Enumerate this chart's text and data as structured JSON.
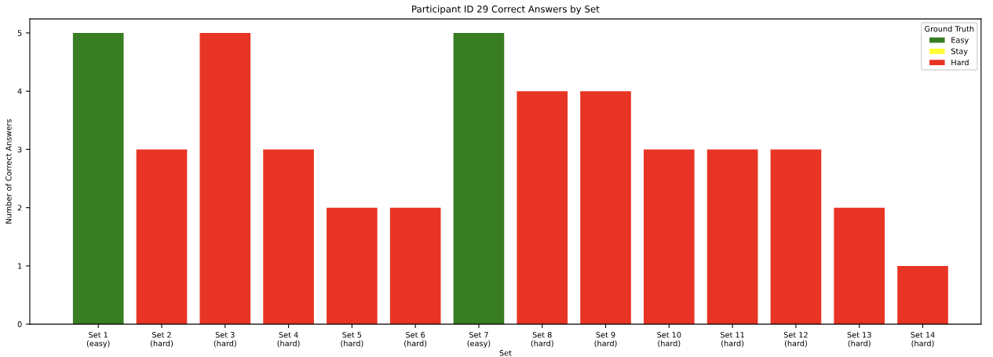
{
  "chart_data": {
    "type": "bar",
    "title": "Participant ID 29 Correct Answers by Set",
    "xlabel": "Set",
    "ylabel": "Number of Correct Answers",
    "legend_title": "Ground Truth",
    "legend": "top right",
    "grid": false,
    "categories": [
      "Set 1\n(easy)",
      "Set 2\n(hard)",
      "Set 3\n(hard)",
      "Set 4\n(hard)",
      "Set 5\n(hard)",
      "Set 6\n(hard)",
      "Set 7\n(easy)",
      "Set 8\n(hard)",
      "Set 9\n(hard)",
      "Set 10\n(hard)",
      "Set 11\n(hard)",
      "Set 12\n(hard)",
      "Set 13\n(hard)",
      "Set 14\n(hard)"
    ],
    "series": [
      {
        "name": "Easy",
        "color": "#387d22",
        "values": [
          5,
          null,
          null,
          null,
          null,
          null,
          5,
          null,
          null,
          null,
          null,
          null,
          null,
          null
        ]
      },
      {
        "name": "Stay",
        "color": "#ffff33",
        "values": [
          null,
          null,
          null,
          null,
          null,
          null,
          null,
          null,
          null,
          null,
          null,
          null,
          null,
          null
        ]
      },
      {
        "name": "Hard",
        "color": "#e83424",
        "values": [
          null,
          3,
          5,
          3,
          2,
          2,
          null,
          4,
          4,
          3,
          3,
          3,
          2,
          1
        ]
      }
    ],
    "ylim": [
      0,
      5.24
    ],
    "yticks": [
      0,
      1,
      2,
      3,
      4,
      5
    ]
  }
}
